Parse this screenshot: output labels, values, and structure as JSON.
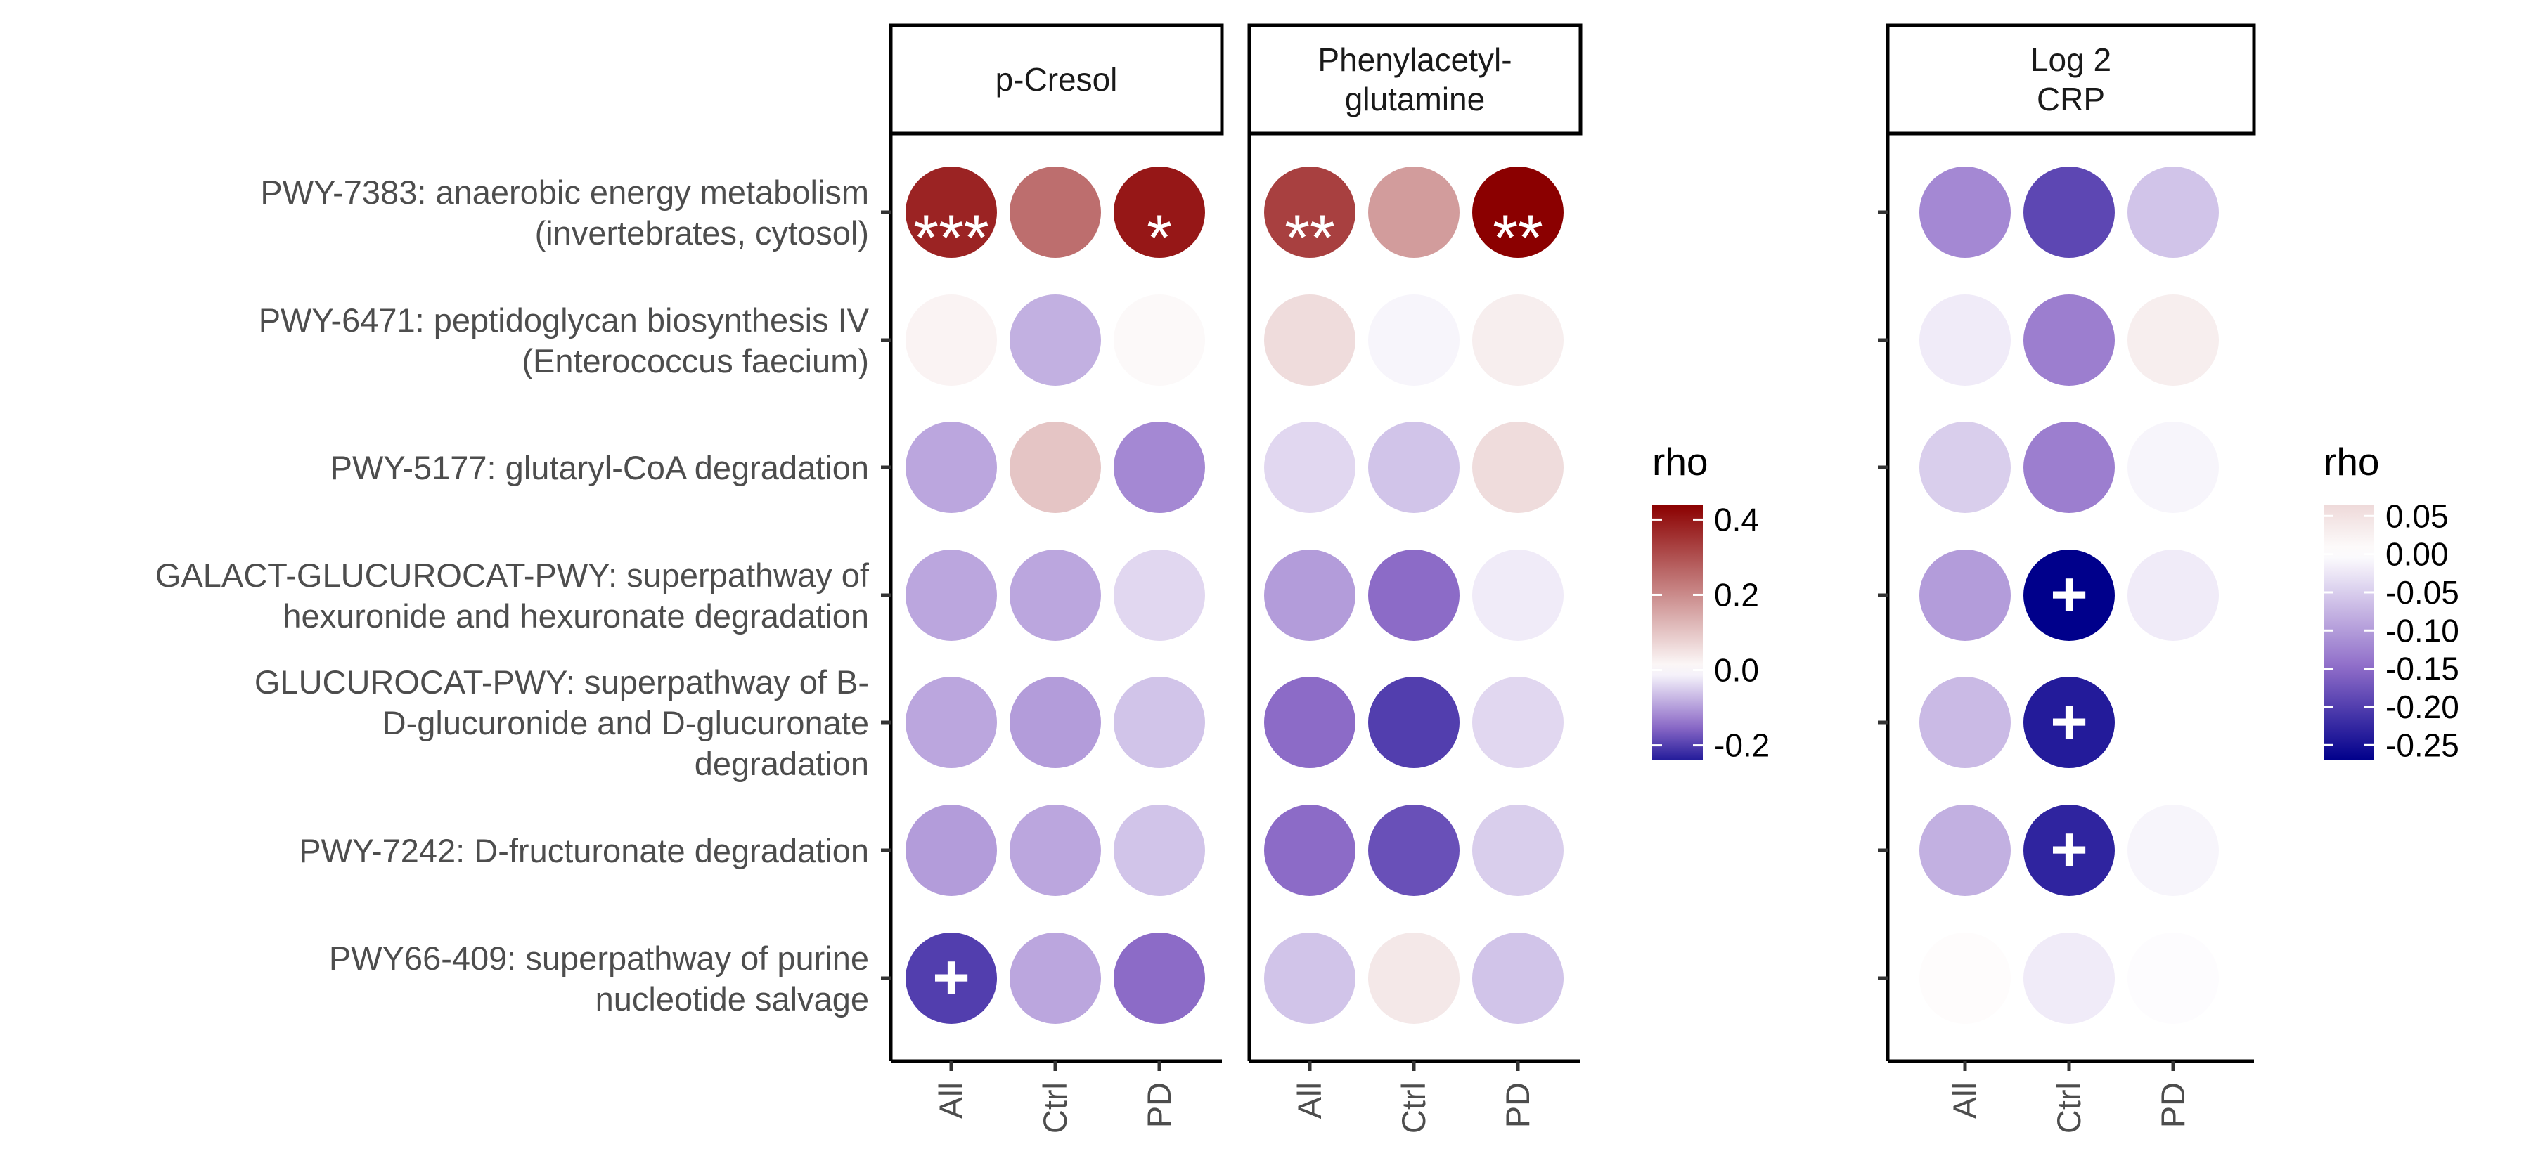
{
  "chart_data": {
    "type": "heatmap",
    "rows": [
      {
        "id": "PWY-7383",
        "label_lines": [
          "PWY-7383: anaerobic energy metabolism",
          "(invertebrates, cytosol)"
        ]
      },
      {
        "id": "PWY-6471",
        "label_lines": [
          "PWY-6471: peptidoglycan biosynthesis IV",
          "(Enterococcus faecium)"
        ]
      },
      {
        "id": "PWY-5177",
        "label_lines": [
          "PWY-5177: glutaryl-CoA degradation"
        ]
      },
      {
        "id": "GALACT-GLUCUROCAT-PWY",
        "label_lines": [
          "GALACT-GLUCUROCAT-PWY: superpathway of",
          "hexuronide and hexuronate degradation"
        ]
      },
      {
        "id": "GLUCUROCAT-PWY",
        "label_lines": [
          "GLUCUROCAT-PWY: superpathway of B-",
          "D-glucuronide and D-glucuronate",
          "degradation"
        ]
      },
      {
        "id": "PWY-7242",
        "label_lines": [
          "PWY-7242: D-fructuronate degradation"
        ]
      },
      {
        "id": "PWY66-409",
        "label_lines": [
          "PWY66-409: superpathway of purine",
          "nucleotide salvage"
        ]
      }
    ],
    "groups": [
      "All",
      "Ctrl",
      "PD"
    ],
    "panels": [
      {
        "id": "p-cresol",
        "strip_lines": [
          "p-Cresol"
        ],
        "scale": "scale1",
        "values": [
          [
            0.38,
            0.25,
            0.4
          ],
          [
            0.02,
            -0.08,
            0.01
          ],
          [
            -0.09,
            0.1,
            -0.12
          ],
          [
            -0.09,
            -0.09,
            -0.04
          ],
          [
            -0.09,
            -0.1,
            -0.06
          ],
          [
            -0.1,
            -0.09,
            -0.06
          ],
          [
            -0.2,
            -0.09,
            -0.15
          ]
        ],
        "labels": [
          [
            "***",
            "",
            "*"
          ],
          [
            "",
            "",
            ""
          ],
          [
            "",
            "",
            ""
          ],
          [
            "",
            "",
            ""
          ],
          [
            "",
            "",
            ""
          ],
          [
            "",
            "",
            ""
          ],
          [
            "+",
            "",
            ""
          ]
        ]
      },
      {
        "id": "phenylacetylglutamine",
        "strip_lines": [
          "Phenylacetyl-",
          "glutamine"
        ],
        "scale": "scale1",
        "values": [
          [
            0.33,
            0.17,
            0.44
          ],
          [
            0.06,
            -0.01,
            0.03
          ],
          [
            -0.04,
            -0.06,
            0.06
          ],
          [
            -0.1,
            -0.15,
            -0.02
          ],
          [
            -0.15,
            -0.2,
            -0.04
          ],
          [
            -0.15,
            -0.18,
            -0.05
          ],
          [
            -0.06,
            0.04,
            -0.06
          ]
        ],
        "labels": [
          [
            "**",
            "",
            "**"
          ],
          [
            "",
            "",
            ""
          ],
          [
            "",
            "",
            ""
          ],
          [
            "",
            "",
            ""
          ],
          [
            "",
            "",
            ""
          ],
          [
            "",
            "",
            ""
          ],
          [
            "",
            "",
            ""
          ]
        ]
      },
      {
        "id": "log2crp",
        "strip_lines": [
          "Log 2",
          "CRP"
        ],
        "scale": "scale2",
        "values": [
          [
            -0.12,
            -0.19,
            -0.06
          ],
          [
            -0.02,
            -0.13,
            0.03
          ],
          [
            -0.05,
            -0.13,
            -0.01
          ],
          [
            -0.1,
            -0.27,
            -0.02
          ],
          [
            -0.07,
            -0.24,
            null
          ],
          [
            -0.08,
            -0.23,
            -0.01
          ],
          [
            0.005,
            -0.02,
            -0.003
          ]
        ],
        "labels": [
          [
            "",
            "",
            ""
          ],
          [
            "",
            "",
            ""
          ],
          [
            "",
            "",
            ""
          ],
          [
            "",
            "+",
            ""
          ],
          [
            "",
            "+",
            ""
          ],
          [
            "",
            "+",
            ""
          ],
          [
            "",
            "",
            ""
          ]
        ]
      }
    ],
    "legends": [
      {
        "id": "scale1",
        "title": "rho",
        "min": -0.24,
        "max": 0.44,
        "ticks": [
          0.4,
          0.2,
          0.0,
          -0.2
        ],
        "tick_labels": [
          "0.4",
          "0.2",
          "0.0",
          "-0.2"
        ]
      },
      {
        "id": "scale2",
        "title": "rho",
        "min": -0.27,
        "max": 0.065,
        "ticks": [
          0.05,
          0.0,
          -0.05,
          -0.1,
          -0.15,
          -0.2,
          -0.25
        ],
        "tick_labels": [
          "0.05",
          "0.00",
          "-0.05",
          "-0.10",
          "-0.15",
          "-0.20",
          "-0.25"
        ]
      }
    ],
    "colors": {
      "positive_end": "#8b0000",
      "zero": "#ffffff",
      "negative_mid": "#8e6cc8",
      "negative_end": "#00008b"
    }
  }
}
